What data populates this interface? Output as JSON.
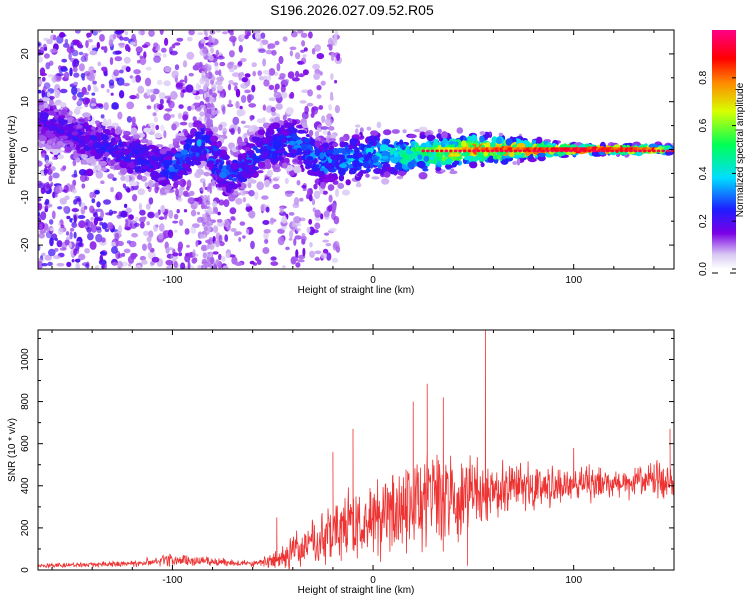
{
  "title": "S196.2026.027.09.52.R05",
  "chart_data": [
    {
      "type": "heatmap",
      "xlabel": "Height of straight line (km)",
      "ylabel": "Frequency (Hz)",
      "xlim": [
        -167,
        150
      ],
      "ylim": [
        -25,
        25
      ],
      "xticks": [
        -100,
        0,
        100
      ],
      "xtick_labels": [
        "-100",
        "0",
        "100"
      ],
      "yticks": [
        -20,
        -10,
        0,
        10,
        20
      ],
      "ytick_labels": [
        "-20",
        "-10",
        "0",
        "10",
        "20"
      ],
      "colorbar": {
        "label": "Normalized spectral amplitude",
        "range": [
          0,
          1
        ],
        "ticks": [
          0.0,
          0.2,
          0.4,
          0.6,
          0.8
        ],
        "tick_labels": [
          "0.0",
          "0.2",
          "0.4",
          "0.6",
          "0.8"
        ],
        "colors": [
          "#ffffff",
          "#d9c9f3",
          "#7a00e6",
          "#1e1eff",
          "#00ddff",
          "#00ff55",
          "#d8ff00",
          "#ff8800",
          "#ff0000",
          "#ff0088"
        ]
      },
      "trend": {
        "description_points_x": [
          -165,
          -130,
          -100,
          -85,
          -72,
          -55,
          -40,
          -25,
          0,
          25,
          50,
          100,
          140,
          150
        ],
        "center_freq": [
          6,
          0,
          -4,
          2,
          -6,
          0,
          2,
          -3,
          -1,
          -1,
          0,
          0,
          0,
          0
        ],
        "max_amplitude": [
          0.22,
          0.25,
          0.3,
          0.35,
          0.3,
          0.3,
          0.32,
          0.35,
          0.4,
          0.6,
          0.85,
          0.95,
          0.9,
          0.3
        ]
      }
    },
    {
      "type": "line",
      "xlabel": "Height of straight line (km)",
      "ylabel": "SNR (10 * v/v)",
      "xlim": [
        -167,
        150
      ],
      "ylim": [
        0,
        1140
      ],
      "xticks": [
        -100,
        0,
        100
      ],
      "xtick_labels": [
        "-100",
        "0",
        "100"
      ],
      "yticks": [
        0,
        200,
        400,
        600,
        800,
        1000
      ],
      "ytick_labels": [
        "0",
        "200",
        "400",
        "600",
        "800",
        "1000"
      ],
      "line_color": "#ee3333",
      "envelope": {
        "x": [
          -167,
          -120,
          -100,
          -80,
          -60,
          -50,
          -40,
          -30,
          -20,
          -10,
          0,
          10,
          20,
          30,
          40,
          50,
          60,
          80,
          100,
          120,
          150
        ],
        "base": [
          20,
          30,
          50,
          40,
          30,
          40,
          90,
          130,
          180,
          200,
          230,
          280,
          320,
          340,
          350,
          360,
          380,
          400,
          410,
          420,
          430
        ],
        "amp": [
          10,
          15,
          30,
          20,
          15,
          40,
          80,
          120,
          150,
          180,
          200,
          230,
          260,
          240,
          200,
          170,
          140,
          110,
          90,
          80,
          80
        ]
      },
      "peaks": [
        {
          "x": -48,
          "y": 250
        },
        {
          "x": -20,
          "y": 560
        },
        {
          "x": -10,
          "y": 670
        },
        {
          "x": 20,
          "y": 800
        },
        {
          "x": 27,
          "y": 885
        },
        {
          "x": 35,
          "y": 820
        },
        {
          "x": 47,
          "y": 20
        },
        {
          "x": 56,
          "y": 1140
        },
        {
          "x": 100,
          "y": 580
        },
        {
          "x": 148,
          "y": 670
        }
      ]
    }
  ]
}
